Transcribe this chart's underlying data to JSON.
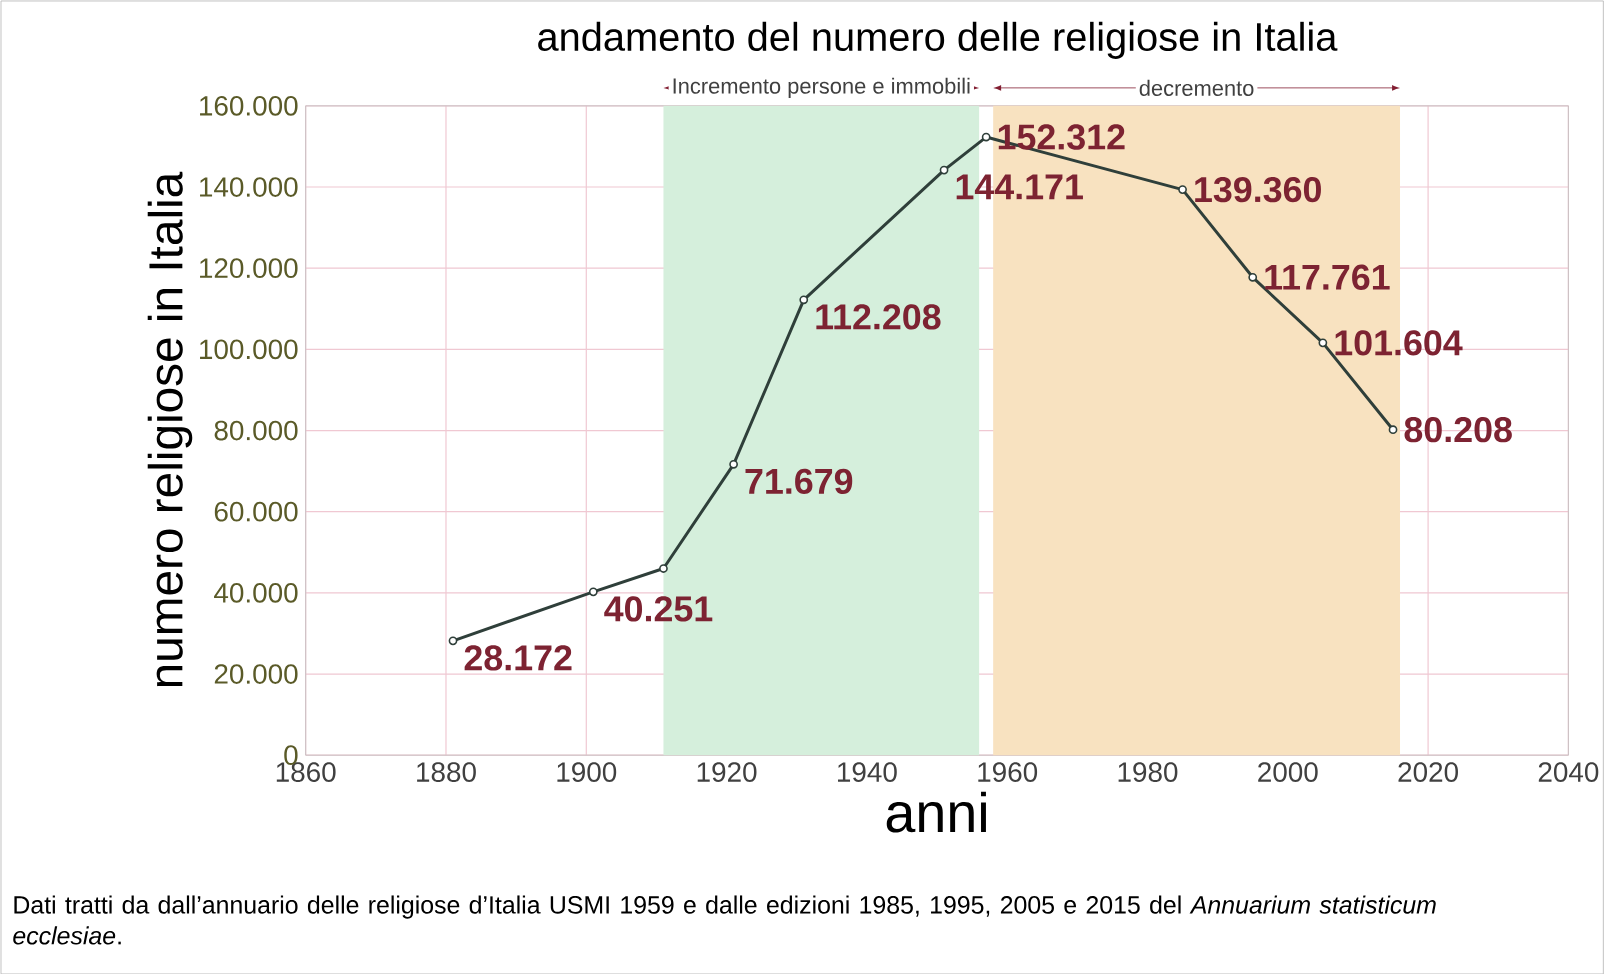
{
  "chart_data": {
    "type": "line",
    "title": "andamento del numero delle religiose in Italia",
    "xlabel": "anni",
    "ylabel": "numero religiose in Italia",
    "x": [
      1881,
      1901,
      1911,
      1921,
      1931,
      1951,
      1957,
      1985,
      1995,
      2005,
      2015
    ],
    "series": [
      {
        "color": "#2f3f3a",
        "values": [
          28172,
          40251,
          46000,
          71679,
          112208,
          144171,
          152312,
          139360,
          117761,
          101604,
          80208
        ],
        "value_labels": [
          "28.172",
          "40.251",
          null,
          "71.679",
          "112.208",
          "144.171",
          "152.312",
          "139.360",
          "117.761",
          "101.604",
          "80.208"
        ]
      }
    ],
    "marker": "circle",
    "xlim": [
      1860,
      2040
    ],
    "xticks": [
      1860,
      1880,
      1900,
      1920,
      1940,
      1960,
      1980,
      2000,
      2020,
      2040
    ],
    "ylim": [
      0,
      160000
    ],
    "yticks": [
      0,
      {
        "value": 20000,
        "label": "20.000"
      },
      {
        "value": 40000,
        "label": "40.000"
      },
      {
        "value": 60000,
        "label": "60.000"
      },
      {
        "value": 80000,
        "label": "80.000"
      },
      {
        "value": 100000,
        "label": "100.000"
      },
      {
        "value": 120000,
        "label": "120.000"
      },
      {
        "value": 140000,
        "label": "140.000"
      },
      {
        "value": 160000,
        "label": "160.000"
      }
    ],
    "grid": true,
    "bands": [
      {
        "axis": "x",
        "from": 1911,
        "to": 1956,
        "label": "Incremento persone e immobili",
        "color": "#d5efdc"
      },
      {
        "axis": "x",
        "from": 1958,
        "to": 2016,
        "label": "decremento",
        "color": "#f8e2c0"
      }
    ],
    "annotations": [
      "Dati tratti da dall’annuario delle religiose d’Italia USMI 1959 e dalle edizioni 1985, 1995, 2005 e 2015 del *Annuarium statisticum ecclesiae*."
    ]
  }
}
